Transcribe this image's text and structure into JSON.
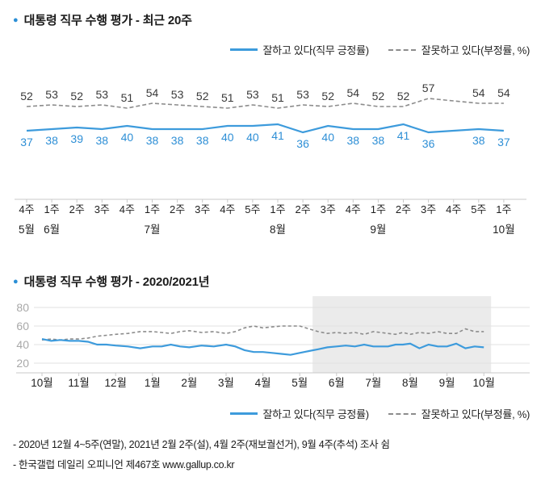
{
  "icons": {
    "title_bullet": "●"
  },
  "accent_colors": {
    "blue": "#3d9bdc",
    "gray": "#8c8c8c",
    "highlight": "#ebebeb"
  },
  "top_chart": {
    "title": "대통령 직무 수행 평가 - 최근 20주",
    "legend": {
      "positive": "잘하고 있다(직무 긍정률)",
      "negative": "잘못하고 있다(부정률, %)"
    }
  },
  "bottom_chart": {
    "title": "대통령 직무 수행 평가 - 2020/2021년",
    "legend": {
      "positive": "잘하고 있다(직무 긍정률)",
      "negative": "잘못하고 있다(부정률, %)"
    }
  },
  "footnotes": [
    "- 2020년 12월 4~5주(연말), 2021년 2월 2주(설), 4월 2주(재보궐선거), 9월 4주(추석) 조사 쉼",
    "- 한국갤럽 데일리 오피니언 제467호 www.gallup.co.kr"
  ],
  "chart_data": [
    {
      "type": "line",
      "title": "대통령 직무 수행 평가 - 최근 20주",
      "x_week_labels": [
        "4주",
        "1주",
        "2주",
        "3주",
        "4주",
        "1주",
        "2주",
        "3주",
        "4주",
        "5주",
        "1주",
        "2주",
        "3주",
        "4주",
        "1주",
        "2주",
        "3주",
        "4주",
        "5주",
        "1주"
      ],
      "month_ticks": [
        {
          "label": "5월",
          "slot": 0
        },
        {
          "label": "6월",
          "slot": 1
        },
        {
          "label": "7월",
          "slot": 5
        },
        {
          "label": "8월",
          "slot": 10
        },
        {
          "label": "9월",
          "slot": 14
        },
        {
          "label": "10월",
          "slot": 19
        }
      ],
      "skipped_slot": 17,
      "ylim": [
        30,
        62
      ],
      "grid": false,
      "legend_position": "top-right",
      "series": [
        {
          "name": "잘못하고 있다(부정률, %)",
          "style": "dashed",
          "color": "#8c8c8c",
          "label_color": "#3a3a3a",
          "label_position": "above",
          "slots": [
            0,
            1,
            2,
            3,
            4,
            5,
            6,
            7,
            8,
            9,
            10,
            11,
            12,
            13,
            14,
            15,
            16,
            18,
            19
          ],
          "values": [
            52,
            53,
            52,
            53,
            51,
            54,
            53,
            52,
            51,
            53,
            51,
            53,
            52,
            54,
            52,
            52,
            57,
            54,
            54
          ]
        },
        {
          "name": "잘하고 있다(직무 긍정률)",
          "style": "solid",
          "color": "#3d9bdc",
          "label_color": "#2e8fd6",
          "label_position": "below",
          "slots": [
            0,
            1,
            2,
            3,
            4,
            5,
            6,
            7,
            8,
            9,
            10,
            11,
            12,
            13,
            14,
            15,
            16,
            18,
            19
          ],
          "values": [
            37,
            38,
            39,
            38,
            40,
            38,
            38,
            38,
            40,
            40,
            41,
            36,
            40,
            38,
            38,
            41,
            36,
            38,
            37
          ]
        }
      ]
    },
    {
      "type": "line",
      "title": "대통령 직무 수행 평가 - 2020/2021년",
      "yticks": [
        20,
        40,
        60,
        80
      ],
      "ylim": [
        10,
        85
      ],
      "grid": true,
      "legend_position": "bottom-right",
      "highlight_start_month_index": 8,
      "series_names": {
        "pos": "잘하고 있다(직무 긍정률)",
        "neg": "잘못하고 있다(부정률, %)"
      },
      "months": [
        {
          "label": "10월",
          "pos": [
            46,
            44,
            45,
            44
          ],
          "neg": [
            45,
            46,
            45,
            46
          ]
        },
        {
          "label": "11월",
          "pos": [
            44,
            43,
            40,
            40
          ],
          "neg": [
            46,
            47,
            49,
            50
          ]
        },
        {
          "label": "12월",
          "pos": [
            39,
            38,
            36
          ],
          "neg": [
            51,
            52,
            54
          ]
        },
        {
          "label": "1월",
          "pos": [
            38,
            38,
            40,
            38
          ],
          "neg": [
            54,
            53,
            52,
            54
          ]
        },
        {
          "label": "2월",
          "pos": [
            37,
            39,
            38
          ],
          "neg": [
            55,
            53,
            54
          ]
        },
        {
          "label": "3월",
          "pos": [
            40,
            38,
            34,
            32
          ],
          "neg": [
            52,
            54,
            58,
            60
          ]
        },
        {
          "label": "4월",
          "pos": [
            32,
            31,
            30,
            29
          ],
          "neg": [
            58,
            59,
            60,
            60
          ]
        },
        {
          "label": "5월",
          "pos": [
            31,
            33,
            35,
            37
          ],
          "neg": [
            60,
            57,
            54,
            52
          ]
        },
        {
          "label": "6월",
          "pos": [
            38,
            39,
            38,
            40
          ],
          "neg": [
            53,
            52,
            53,
            51
          ]
        },
        {
          "label": "7월",
          "pos": [
            38,
            38,
            38,
            40,
            40
          ],
          "neg": [
            54,
            53,
            52,
            51,
            53
          ]
        },
        {
          "label": "8월",
          "pos": [
            41,
            36,
            40,
            38
          ],
          "neg": [
            51,
            53,
            52,
            54
          ]
        },
        {
          "label": "9월",
          "pos": [
            38,
            41,
            36,
            38
          ],
          "neg": [
            52,
            52,
            57,
            54
          ]
        },
        {
          "label": "10월",
          "pos": [
            37
          ],
          "neg": [
            54
          ]
        }
      ]
    }
  ]
}
